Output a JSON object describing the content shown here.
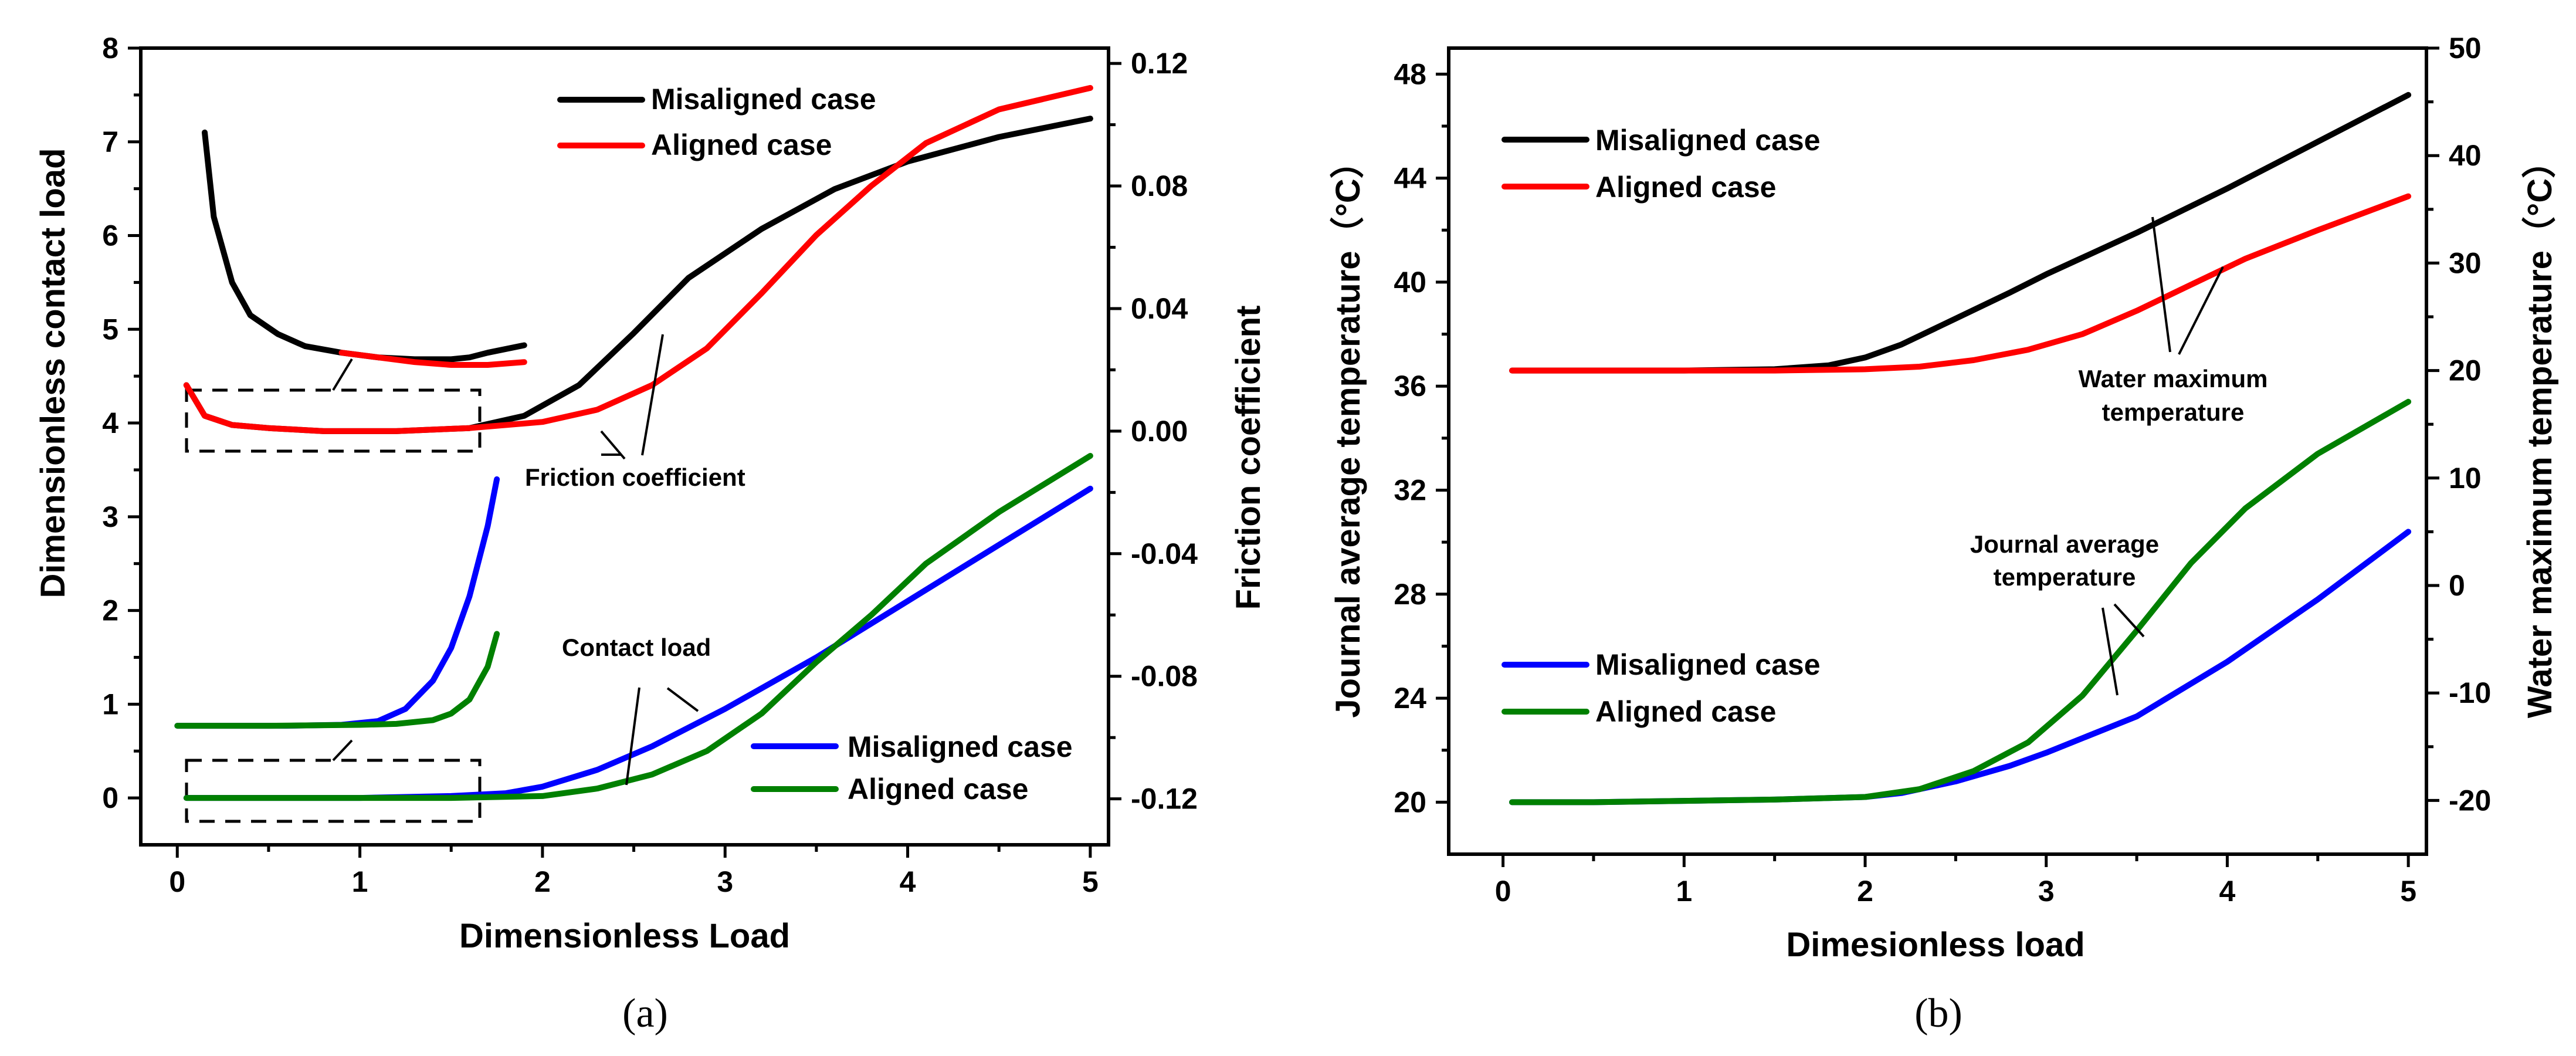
{
  "chart_data": [
    {
      "type": "line",
      "panel_label": "(a)",
      "xlabel": "Dimensionless Load",
      "ylabel_left": "Dimensionless contact load",
      "ylabel_right": "Friction coefficient",
      "xlim": [
        -0.2,
        5.1
      ],
      "ylim_left": [
        -0.5,
        8
      ],
      "ylim_right": [
        -0.135,
        0.125
      ],
      "x_ticks": [
        "0",
        "1",
        "2",
        "3",
        "4",
        "5"
      ],
      "y_left_ticks": [
        "0",
        "1",
        "2",
        "3",
        "4",
        "5",
        "6",
        "7",
        "8"
      ],
      "y_right_ticks": [
        "-0.12",
        "-0.08",
        "-0.04",
        "0.00",
        "0.04",
        "0.08",
        "0.12"
      ],
      "legend_friction": [
        {
          "label": "Misaligned case",
          "color": "#000000"
        },
        {
          "label": "Aligned case",
          "color": "#ff0000"
        }
      ],
      "legend_contact": [
        {
          "label": "Misaligned case",
          "color": "#0000ff"
        },
        {
          "label": "Aligned case",
          "color": "#008000"
        }
      ],
      "annotations": {
        "friction": "Friction coefficient",
        "contact": "Contact load"
      },
      "series": [
        {
          "axis": "right",
          "color": "#000000",
          "x": [
            0.05,
            0.15,
            0.3,
            0.5,
            0.8,
            1.2,
            1.6,
            1.9,
            2.2,
            2.5,
            2.8,
            3.2,
            3.6,
            4.0,
            4.5,
            5.0
          ],
          "values": [
            0.015,
            0.005,
            0.002,
            0.001,
            0.0,
            0.0,
            0.001,
            0.005,
            0.015,
            0.032,
            0.05,
            0.066,
            0.079,
            0.088,
            0.096,
            0.102
          ]
        },
        {
          "axis": "right",
          "color": "#ff0000",
          "x": [
            0.05,
            0.15,
            0.3,
            0.5,
            0.8,
            1.2,
            1.6,
            2.0,
            2.3,
            2.6,
            2.9,
            3.2,
            3.5,
            3.8,
            4.1,
            4.5,
            5.0
          ],
          "values": [
            0.015,
            0.005,
            0.002,
            0.001,
            0.0,
            0.0,
            0.001,
            0.003,
            0.007,
            0.015,
            0.027,
            0.045,
            0.064,
            0.08,
            0.094,
            0.105,
            0.112
          ]
        },
        {
          "axis": "left",
          "color": "#0000ff",
          "x": [
            0.05,
            0.5,
            1.0,
            1.5,
            1.8,
            2.0,
            2.3,
            2.6,
            3.0,
            3.5,
            4.0,
            4.5,
            5.0
          ],
          "values": [
            0.0,
            0.0,
            0.0,
            0.02,
            0.05,
            0.12,
            0.3,
            0.55,
            0.95,
            1.5,
            2.1,
            2.7,
            3.3
          ]
        },
        {
          "axis": "left",
          "color": "#008000",
          "x": [
            0.05,
            0.5,
            1.0,
            1.5,
            2.0,
            2.3,
            2.6,
            2.9,
            3.2,
            3.5,
            3.8,
            4.1,
            4.5,
            5.0
          ],
          "values": [
            0.0,
            0.0,
            0.0,
            0.0,
            0.02,
            0.1,
            0.25,
            0.5,
            0.9,
            1.45,
            1.95,
            2.5,
            3.05,
            3.65
          ]
        }
      ],
      "inset_series": [
        {
          "color": "#000000",
          "x": [
            0.15,
            0.2,
            0.3,
            0.4,
            0.55,
            0.7,
            0.9,
            1.1,
            1.3,
            1.5,
            1.6,
            1.7,
            1.9
          ],
          "values": [
            7.1,
            6.2,
            5.5,
            5.15,
            4.95,
            4.82,
            4.75,
            4.7,
            4.68,
            4.68,
            4.7,
            4.75,
            4.83
          ]
        },
        {
          "color": "#ff0000",
          "x": [
            0.9,
            1.1,
            1.3,
            1.5,
            1.7,
            1.9
          ],
          "values": [
            4.75,
            4.7,
            4.65,
            4.62,
            4.62,
            4.65
          ]
        },
        {
          "color": "#0000ff",
          "x": [
            0.0,
            0.3,
            0.6,
            0.9,
            1.1,
            1.25,
            1.4,
            1.5,
            1.6,
            1.7,
            1.75
          ],
          "values": [
            0.77,
            0.77,
            0.77,
            0.78,
            0.82,
            0.95,
            1.25,
            1.6,
            2.15,
            2.9,
            3.4
          ]
        },
        {
          "color": "#008000",
          "x": [
            0.0,
            0.5,
            1.0,
            1.2,
            1.4,
            1.5,
            1.6,
            1.7,
            1.75
          ],
          "values": [
            0.77,
            0.77,
            0.78,
            0.79,
            0.83,
            0.9,
            1.05,
            1.4,
            1.75
          ]
        }
      ]
    },
    {
      "type": "line",
      "panel_label": "(b)",
      "xlabel": "Dimesionless load",
      "ylabel_left": "Journal average temperature（°C）",
      "ylabel_right": "Water maximum temperature（°C）",
      "xlim": [
        -0.3,
        5.1
      ],
      "ylim_left": [
        18,
        49
      ],
      "ylim_right": [
        -25,
        50
      ],
      "x_ticks": [
        "0",
        "1",
        "2",
        "3",
        "4",
        "5"
      ],
      "y_left_ticks": [
        "20",
        "24",
        "28",
        "32",
        "36",
        "40",
        "44",
        "48"
      ],
      "y_right_ticks": [
        "-20",
        "-10",
        "0",
        "10",
        "20",
        "30",
        "40",
        "50"
      ],
      "legend_water": [
        {
          "label": "Misaligned case",
          "color": "#000000"
        },
        {
          "label": "Aligned case",
          "color": "#ff0000"
        }
      ],
      "legend_journal": [
        {
          "label": "Misaligned case",
          "color": "#0000ff"
        },
        {
          "label": "Aligned case",
          "color": "#008000"
        }
      ],
      "annotations": {
        "water_line1": "Water maximum",
        "water_line2": "temperature",
        "journal_line1": "Journal average",
        "journal_line2": "temperature"
      },
      "series": [
        {
          "axis": "left",
          "color": "#000000",
          "x": [
            0.05,
            0.5,
            1.0,
            1.5,
            1.8,
            2.0,
            2.2,
            2.5,
            2.8,
            3.0,
            3.5,
            4.0,
            4.5,
            5.0
          ],
          "values": [
            36.6,
            36.6,
            36.6,
            36.65,
            36.8,
            37.1,
            37.6,
            38.6,
            39.6,
            40.3,
            41.9,
            43.6,
            45.4,
            47.2
          ]
        },
        {
          "axis": "left",
          "color": "#ff0000",
          "x": [
            0.05,
            0.5,
            1.0,
            1.5,
            2.0,
            2.3,
            2.6,
            2.9,
            3.2,
            3.5,
            3.8,
            4.1,
            4.5,
            5.0
          ],
          "values": [
            36.6,
            36.6,
            36.6,
            36.6,
            36.65,
            36.75,
            37.0,
            37.4,
            38.0,
            38.9,
            39.9,
            40.9,
            42.0,
            43.3
          ]
        },
        {
          "axis": "left",
          "color": "#0000ff",
          "x": [
            0.05,
            0.5,
            1.0,
            1.5,
            2.0,
            2.2,
            2.5,
            2.8,
            3.0,
            3.5,
            4.0,
            4.5,
            5.0
          ],
          "values": [
            20.0,
            20.0,
            20.05,
            20.1,
            20.2,
            20.35,
            20.8,
            21.4,
            21.9,
            23.3,
            25.4,
            27.8,
            30.4
          ]
        },
        {
          "axis": "left",
          "color": "#008000",
          "x": [
            0.05,
            0.5,
            1.0,
            1.5,
            2.0,
            2.3,
            2.6,
            2.9,
            3.2,
            3.5,
            3.8,
            4.1,
            4.5,
            5.0
          ],
          "values": [
            20.0,
            20.0,
            20.05,
            20.1,
            20.2,
            20.5,
            21.2,
            22.3,
            24.1,
            26.6,
            29.2,
            31.3,
            33.4,
            35.4
          ]
        }
      ]
    }
  ]
}
